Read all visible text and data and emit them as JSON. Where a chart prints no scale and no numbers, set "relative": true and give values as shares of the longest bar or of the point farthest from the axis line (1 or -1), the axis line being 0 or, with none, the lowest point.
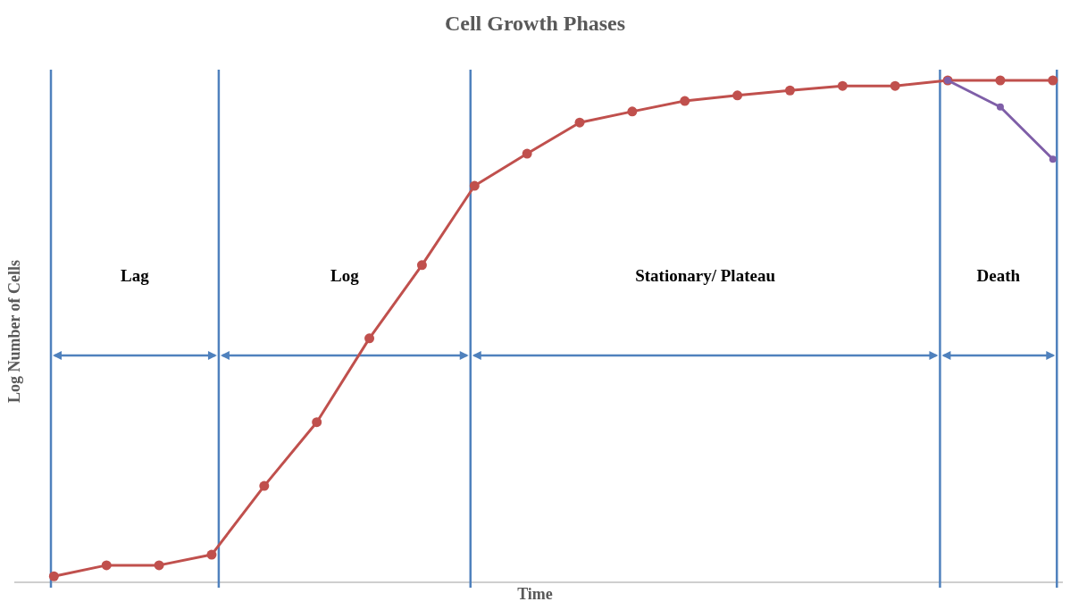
{
  "chart_data": {
    "type": "line",
    "title": "Cell Growth Phases",
    "xlabel": "Time",
    "ylabel": "Log Number of Cells",
    "relative": true,
    "categories": [
      null,
      null,
      null,
      null,
      null,
      null,
      null,
      null,
      null,
      null,
      null,
      null,
      null,
      null,
      null,
      null,
      null,
      null,
      null,
      null
    ],
    "series": [
      {
        "color": "#c0504d",
        "values": [
          0.012,
          0.034,
          0.034,
          0.055,
          0.192,
          0.319,
          0.486,
          0.632,
          0.79,
          0.854,
          0.916,
          0.938,
          0.959,
          0.97,
          0.98,
          0.989,
          0.989,
          1,
          1,
          1
        ]
      },
      {
        "color": "#7f5fa8",
        "values": [
          null,
          null,
          null,
          null,
          null,
          null,
          null,
          null,
          null,
          null,
          null,
          null,
          null,
          null,
          null,
          null,
          null,
          1,
          0.947,
          0.843
        ]
      }
    ],
    "annotations": [
      "Lag",
      "Log",
      "Stationary/ Plateau",
      "Death"
    ],
    "marker": "circle",
    "line_style": "solid",
    "grid": "x"
  }
}
